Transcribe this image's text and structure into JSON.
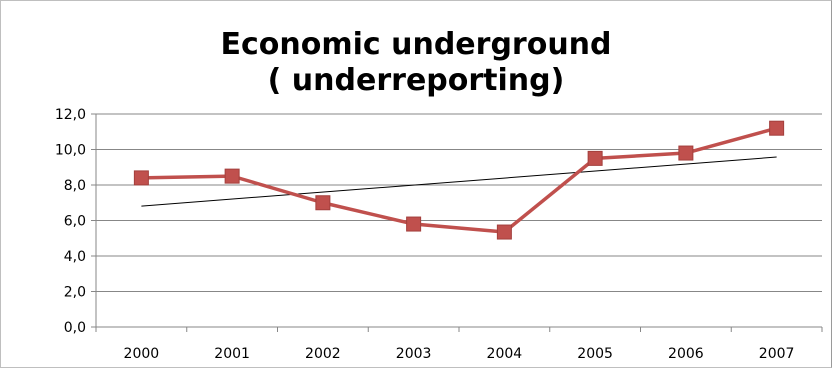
{
  "chart_data": {
    "type": "line",
    "title_lines": [
      "Economic underground",
      "( underreporting)"
    ],
    "categories": [
      "2000",
      "2001",
      "2002",
      "2003",
      "2004",
      "2005",
      "2006",
      "2007"
    ],
    "series": [
      {
        "values": [
          8.4,
          8.5,
          7.0,
          5.8,
          5.35,
          9.5,
          9.8,
          11.2
        ],
        "color": "#c0504d",
        "marker": "square"
      }
    ],
    "trendline": {
      "type": "linear",
      "color": "#000000"
    },
    "ylim": [
      0,
      12
    ],
    "yticks": [
      "0,0",
      "2,0",
      "4,0",
      "6,0",
      "8,0",
      "10,0",
      "12,0"
    ],
    "grid": true,
    "legend": "none"
  }
}
